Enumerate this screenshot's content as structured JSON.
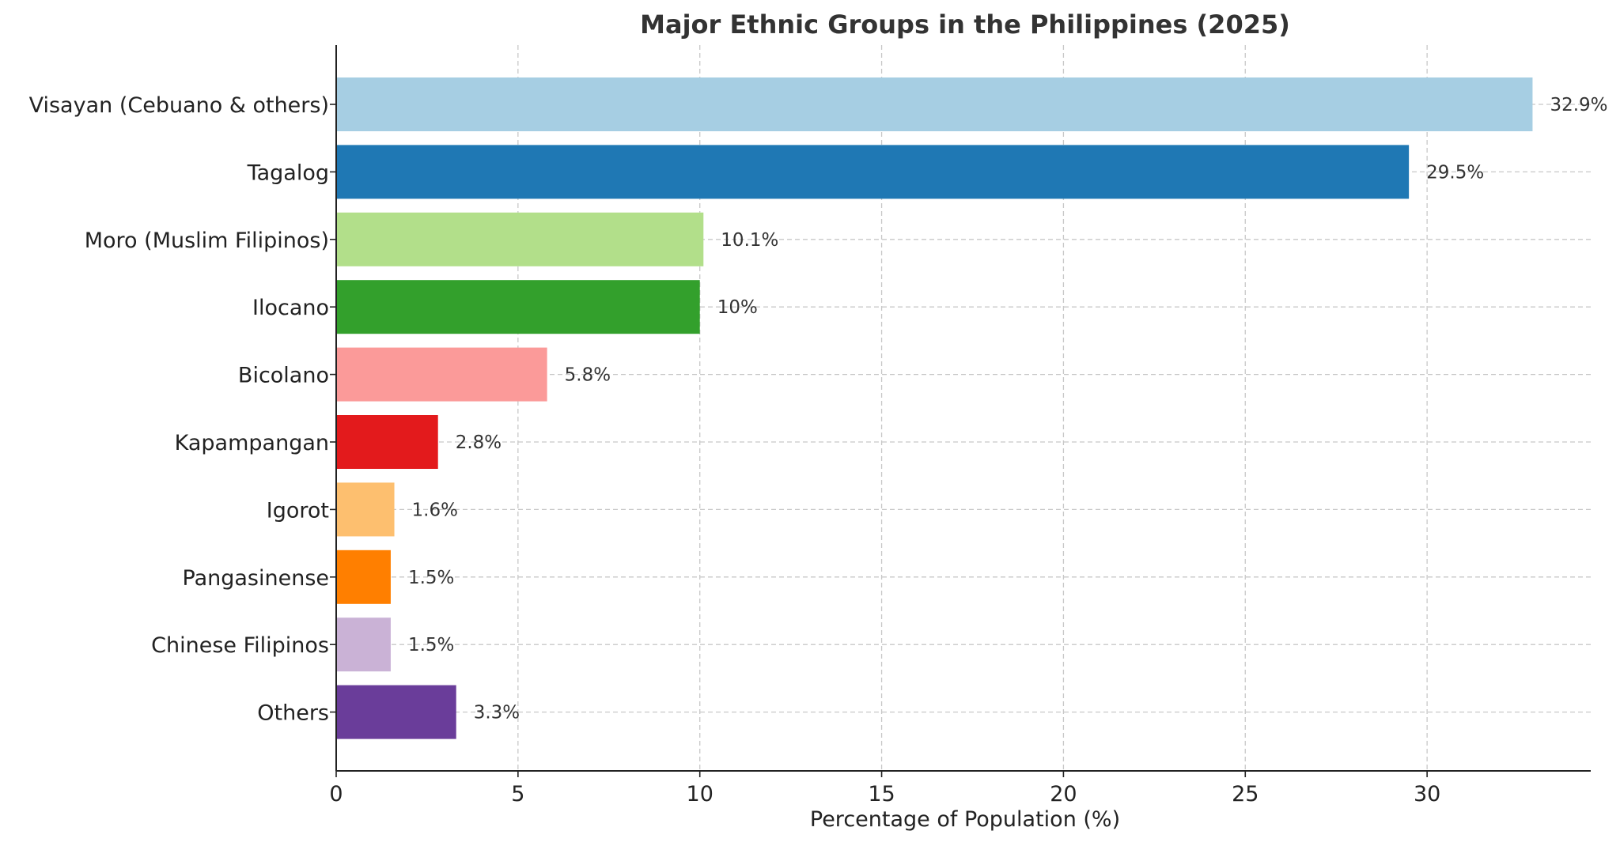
{
  "chart_data": {
    "type": "bar",
    "orientation": "horizontal",
    "title": "Major Ethnic Groups in the Philippines (2025)",
    "xlabel": "Percentage of Population (%)",
    "ylabel": "",
    "xlim": [
      0,
      34.5
    ],
    "xticks": [
      0,
      5,
      10,
      15,
      20,
      25,
      30
    ],
    "grid": true,
    "categories": [
      "Visayan (Cebuano & others)",
      "Tagalog",
      "Moro (Muslim Filipinos)",
      "Ilocano",
      "Bicolano",
      "Kapampangan",
      "Igorot",
      "Pangasinense",
      "Chinese Filipinos",
      "Others"
    ],
    "values": [
      32.9,
      29.5,
      10.1,
      10,
      5.8,
      2.8,
      1.6,
      1.5,
      1.5,
      3.3
    ],
    "value_labels": [
      "32.9%",
      "29.5%",
      "10.1%",
      "10%",
      "5.8%",
      "2.8%",
      "1.6%",
      "1.5%",
      "1.5%",
      "3.3%"
    ],
    "colors": [
      "#a6cee3",
      "#1f78b4",
      "#b2df8a",
      "#33a02c",
      "#fb9a99",
      "#e31a1c",
      "#fdbf6f",
      "#ff7f00",
      "#cab2d6",
      "#6a3d9a"
    ]
  }
}
